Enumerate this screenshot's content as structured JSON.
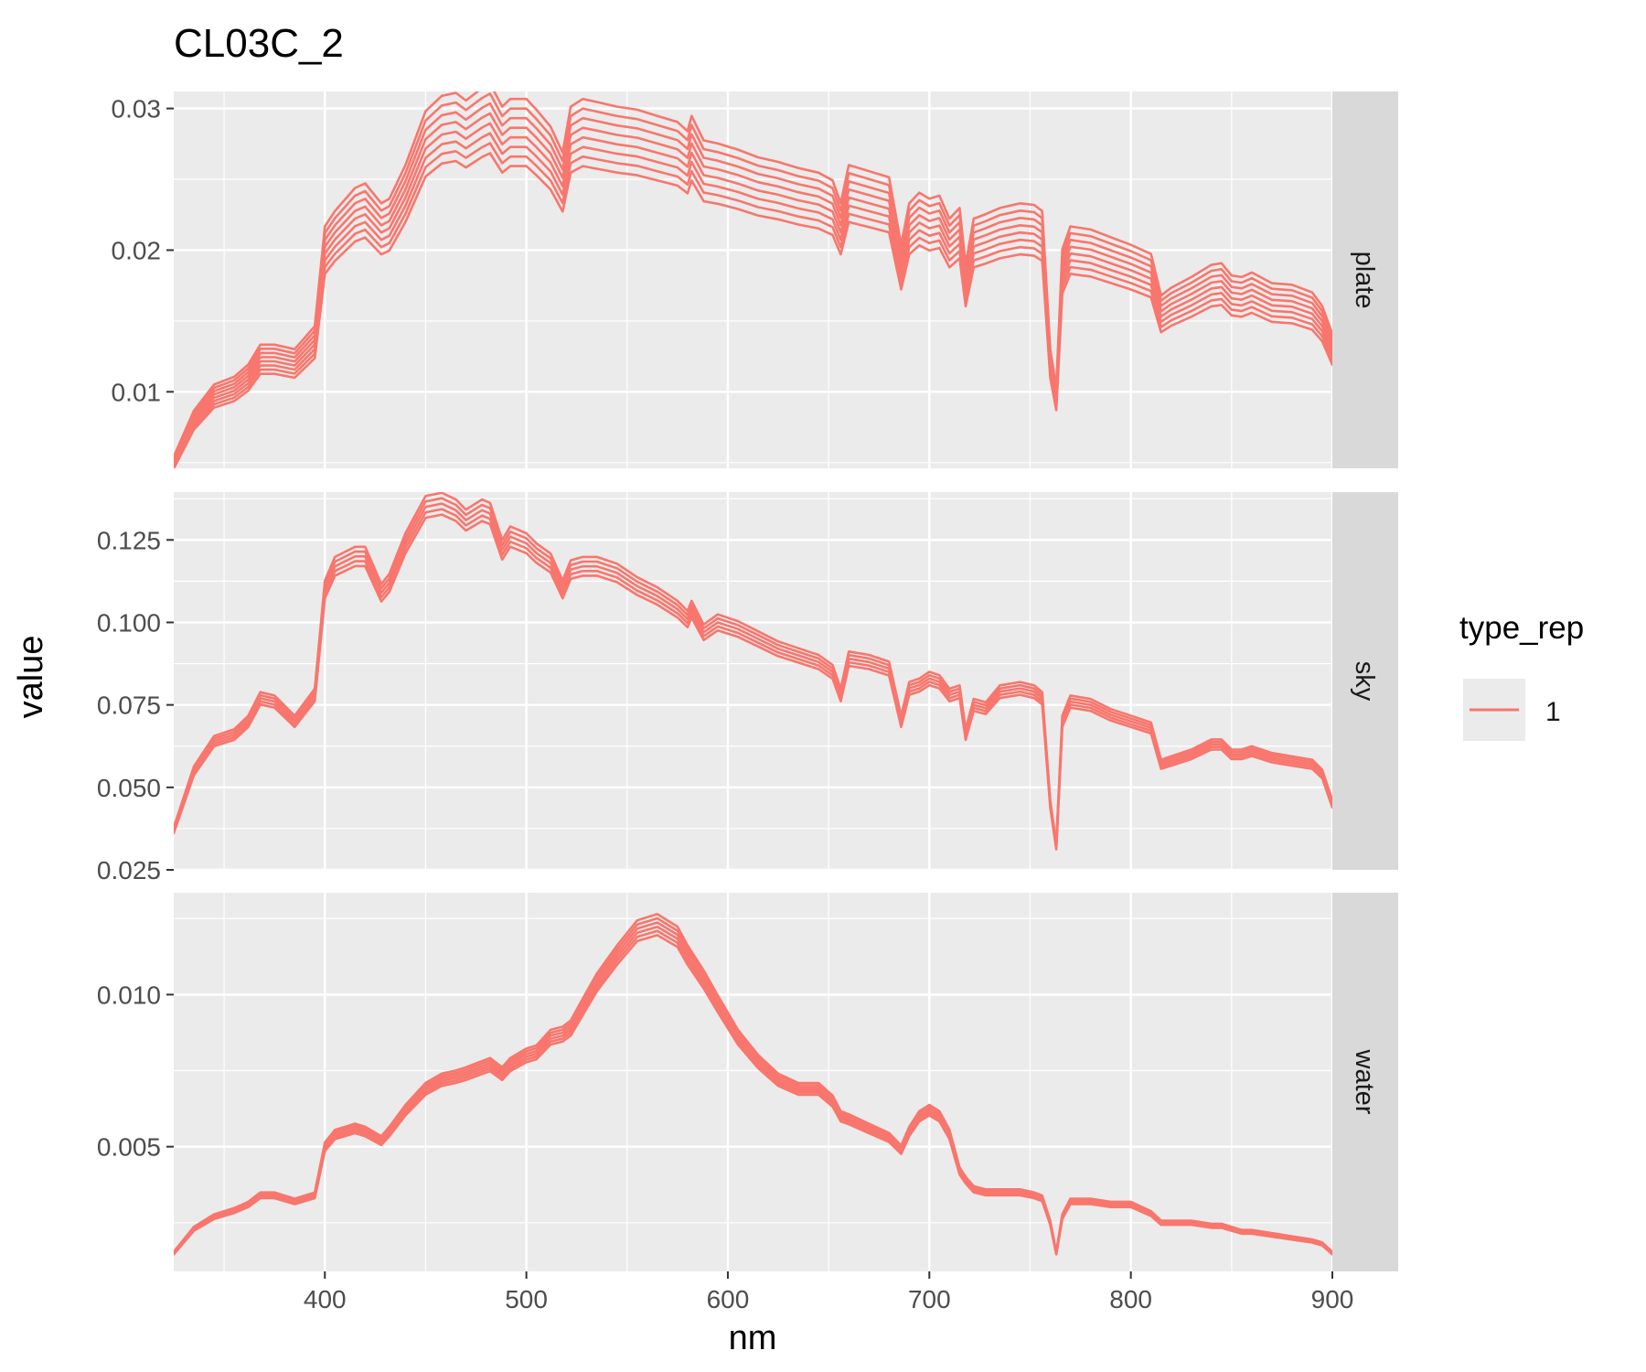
{
  "chart_data": {
    "type": "line",
    "title": "CL03C_2",
    "xlabel": "nm",
    "ylabel": "value",
    "xlim": [
      325,
      900
    ],
    "x_ticks": [
      400,
      500,
      600,
      700,
      800,
      900
    ],
    "x_tick_labels": [
      "400",
      "500",
      "600",
      "700",
      "800",
      "900"
    ],
    "grid": true,
    "legend": {
      "title": "type_rep",
      "position": "right",
      "entries": [
        {
          "label": "1",
          "color": "#F8766D"
        }
      ]
    },
    "series_color": "#F8766D",
    "facets": [
      {
        "name": "plate",
        "ylim": [
          0.0046,
          0.0312
        ],
        "y_ticks": [
          0.01,
          0.02,
          0.03
        ],
        "y_tick_labels": [
          "0.01",
          "0.02",
          "0.03"
        ],
        "replicates": 8,
        "replicate_spread": 0.003,
        "x": [
          325,
          335,
          345,
          355,
          362,
          368,
          375,
          385,
          395,
          400,
          405,
          415,
          420,
          428,
          432,
          440,
          450,
          458,
          465,
          470,
          478,
          482,
          488,
          492,
          500,
          505,
          512,
          518,
          522,
          528,
          535,
          545,
          555,
          565,
          575,
          580,
          582,
          588,
          595,
          605,
          615,
          625,
          635,
          645,
          652,
          656,
          660,
          670,
          680,
          686,
          690,
          695,
          700,
          705,
          710,
          715,
          718,
          722,
          728,
          735,
          745,
          752,
          756,
          760,
          763,
          766,
          770,
          780,
          790,
          800,
          810,
          815,
          820,
          830,
          840,
          845,
          850,
          855,
          860,
          870,
          880,
          890,
          895,
          900
        ],
        "y": [
          0.005,
          0.008,
          0.0097,
          0.0102,
          0.011,
          0.0123,
          0.0123,
          0.012,
          0.0135,
          0.02,
          0.021,
          0.0225,
          0.0228,
          0.0215,
          0.0218,
          0.024,
          0.0275,
          0.0285,
          0.0287,
          0.0282,
          0.029,
          0.0293,
          0.0278,
          0.0283,
          0.0283,
          0.0276,
          0.0265,
          0.0248,
          0.0278,
          0.0283,
          0.0281,
          0.0278,
          0.0276,
          0.0272,
          0.0268,
          0.0262,
          0.0272,
          0.0256,
          0.0254,
          0.025,
          0.0245,
          0.0242,
          0.0238,
          0.0235,
          0.023,
          0.0215,
          0.024,
          0.0236,
          0.0232,
          0.0188,
          0.0215,
          0.0222,
          0.0218,
          0.022,
          0.0205,
          0.0212,
          0.0175,
          0.0205,
          0.0208,
          0.0212,
          0.0215,
          0.0214,
          0.021,
          0.012,
          0.0095,
          0.0185,
          0.02,
          0.0198,
          0.0193,
          0.0188,
          0.0182,
          0.0155,
          0.016,
          0.0167,
          0.0175,
          0.0176,
          0.0168,
          0.0167,
          0.017,
          0.0163,
          0.0162,
          0.0157,
          0.0148,
          0.013
        ]
      },
      {
        "name": "sky",
        "ylim": [
          0.025,
          0.1395
        ],
        "y_ticks": [
          0.025,
          0.05,
          0.075,
          0.1,
          0.125
        ],
        "y_tick_labels": [
          "0.025",
          "0.050",
          "0.075",
          "0.100",
          "0.125"
        ],
        "replicates": 5,
        "replicate_spread": 0.004,
        "x": [
          325,
          335,
          345,
          355,
          362,
          368,
          375,
          385,
          395,
          400,
          405,
          415,
          420,
          428,
          432,
          440,
          450,
          458,
          465,
          470,
          478,
          482,
          488,
          492,
          500,
          505,
          512,
          518,
          522,
          528,
          535,
          545,
          555,
          565,
          575,
          580,
          582,
          588,
          595,
          605,
          615,
          625,
          635,
          645,
          652,
          656,
          660,
          670,
          680,
          686,
          690,
          695,
          700,
          705,
          710,
          715,
          718,
          722,
          728,
          735,
          745,
          752,
          756,
          760,
          763,
          766,
          770,
          780,
          790,
          800,
          810,
          815,
          820,
          830,
          840,
          845,
          850,
          855,
          860,
          870,
          880,
          890,
          895,
          900
        ],
        "y": [
          0.037,
          0.055,
          0.064,
          0.066,
          0.07,
          0.077,
          0.076,
          0.07,
          0.078,
          0.11,
          0.117,
          0.12,
          0.12,
          0.109,
          0.112,
          0.124,
          0.135,
          0.136,
          0.134,
          0.131,
          0.134,
          0.133,
          0.122,
          0.126,
          0.124,
          0.121,
          0.118,
          0.11,
          0.116,
          0.117,
          0.117,
          0.115,
          0.111,
          0.108,
          0.104,
          0.101,
          0.104,
          0.097,
          0.1,
          0.098,
          0.095,
          0.092,
          0.09,
          0.088,
          0.085,
          0.078,
          0.089,
          0.088,
          0.086,
          0.07,
          0.08,
          0.081,
          0.083,
          0.082,
          0.078,
          0.079,
          0.066,
          0.075,
          0.074,
          0.079,
          0.08,
          0.079,
          0.077,
          0.045,
          0.032,
          0.07,
          0.076,
          0.075,
          0.072,
          0.07,
          0.068,
          0.057,
          0.058,
          0.06,
          0.063,
          0.063,
          0.06,
          0.06,
          0.061,
          0.059,
          0.058,
          0.057,
          0.054,
          0.045
        ]
      },
      {
        "name": "water",
        "ylim": [
          0.0009,
          0.01335
        ],
        "y_ticks": [
          0.005,
          0.01
        ],
        "y_tick_labels": [
          "0.005",
          "0.010"
        ],
        "replicates": 6,
        "replicate_spread": 0.0004,
        "x": [
          325,
          335,
          345,
          355,
          362,
          368,
          375,
          385,
          395,
          400,
          405,
          415,
          420,
          428,
          432,
          440,
          450,
          458,
          465,
          470,
          478,
          482,
          488,
          492,
          500,
          505,
          512,
          518,
          522,
          528,
          535,
          545,
          555,
          565,
          575,
          580,
          582,
          588,
          595,
          605,
          615,
          625,
          635,
          645,
          652,
          656,
          660,
          670,
          680,
          686,
          690,
          695,
          700,
          705,
          710,
          715,
          718,
          722,
          728,
          735,
          745,
          752,
          756,
          760,
          763,
          766,
          770,
          780,
          790,
          800,
          810,
          815,
          820,
          830,
          840,
          845,
          850,
          855,
          860,
          870,
          880,
          890,
          895,
          900
        ],
        "y": [
          0.0015,
          0.0023,
          0.0027,
          0.0029,
          0.0031,
          0.0034,
          0.0034,
          0.0032,
          0.0034,
          0.005,
          0.0054,
          0.0056,
          0.0055,
          0.0052,
          0.0055,
          0.0062,
          0.0069,
          0.0072,
          0.0073,
          0.0074,
          0.0076,
          0.0077,
          0.0074,
          0.0077,
          0.008,
          0.0081,
          0.0086,
          0.0087,
          0.0089,
          0.0096,
          0.0104,
          0.0113,
          0.0121,
          0.0123,
          0.0119,
          0.0113,
          0.0111,
          0.0105,
          0.0097,
          0.0086,
          0.0078,
          0.0072,
          0.0069,
          0.0069,
          0.0065,
          0.006,
          0.0059,
          0.0056,
          0.0053,
          0.0049,
          0.0055,
          0.006,
          0.0062,
          0.006,
          0.0054,
          0.0042,
          0.0039,
          0.0036,
          0.0035,
          0.0035,
          0.0035,
          0.0034,
          0.0033,
          0.0025,
          0.0015,
          0.0027,
          0.0032,
          0.0032,
          0.0031,
          0.0031,
          0.0028,
          0.0025,
          0.0025,
          0.0025,
          0.0024,
          0.0024,
          0.0023,
          0.0022,
          0.0022,
          0.0021,
          0.002,
          0.0019,
          0.0018,
          0.0015
        ]
      }
    ]
  }
}
